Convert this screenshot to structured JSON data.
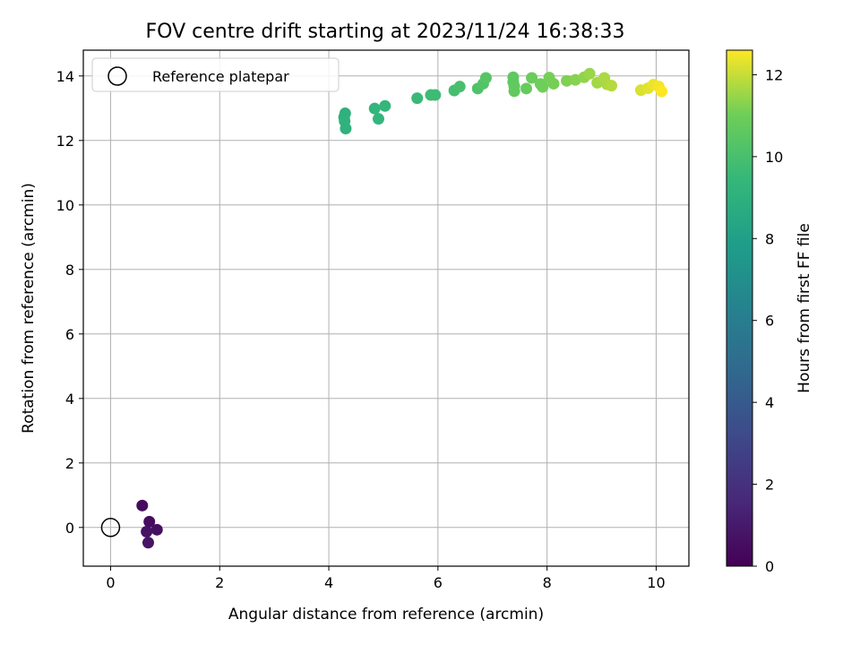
{
  "chart_data": {
    "type": "scatter",
    "title": "FOV centre drift starting at 2023/11/24 16:38:33",
    "xlabel": "Angular distance from reference (arcmin)",
    "ylabel": "Rotation from reference (arcmin)",
    "colorbar_label": "Hours from first FF file",
    "xlim": [
      -0.5,
      10.6
    ],
    "ylim": [
      -1.2,
      14.8
    ],
    "xticks": [
      0,
      2,
      4,
      6,
      8,
      10
    ],
    "yticks": [
      0,
      2,
      4,
      6,
      8,
      10,
      12,
      14
    ],
    "colorbar_range": [
      0,
      12.6
    ],
    "colorbar_ticks": [
      0,
      2,
      4,
      6,
      8,
      10,
      12
    ],
    "colormap": "viridis",
    "grid": true,
    "legend": {
      "position": "top-left",
      "entries": [
        "Reference platepar"
      ]
    },
    "reference_point": {
      "x": 0,
      "y": 0
    },
    "points": [
      {
        "x": 0.58,
        "y": 0.68,
        "t": 0.4
      },
      {
        "x": 0.71,
        "y": 0.18,
        "t": 0.5
      },
      {
        "x": 0.85,
        "y": -0.07,
        "t": 0.6
      },
      {
        "x": 0.66,
        "y": -0.13,
        "t": 0.7
      },
      {
        "x": 0.69,
        "y": -0.47,
        "t": 0.8
      },
      {
        "x": 4.28,
        "y": 12.72,
        "t": 9.0
      },
      {
        "x": 4.3,
        "y": 12.84,
        "t": 9.0
      },
      {
        "x": 4.29,
        "y": 12.6,
        "t": 9.1
      },
      {
        "x": 4.31,
        "y": 12.37,
        "t": 9.1
      },
      {
        "x": 4.84,
        "y": 12.99,
        "t": 9.3
      },
      {
        "x": 4.91,
        "y": 12.67,
        "t": 9.3
      },
      {
        "x": 5.03,
        "y": 13.07,
        "t": 9.4
      },
      {
        "x": 5.62,
        "y": 13.31,
        "t": 9.6
      },
      {
        "x": 5.87,
        "y": 13.41,
        "t": 9.7
      },
      {
        "x": 5.95,
        "y": 13.41,
        "t": 9.7
      },
      {
        "x": 6.3,
        "y": 13.55,
        "t": 9.9
      },
      {
        "x": 6.4,
        "y": 13.67,
        "t": 10.0
      },
      {
        "x": 6.73,
        "y": 13.61,
        "t": 10.2
      },
      {
        "x": 6.83,
        "y": 13.76,
        "t": 10.3
      },
      {
        "x": 6.88,
        "y": 13.94,
        "t": 10.4
      },
      {
        "x": 7.38,
        "y": 13.96,
        "t": 10.6
      },
      {
        "x": 7.38,
        "y": 13.81,
        "t": 10.6
      },
      {
        "x": 7.4,
        "y": 13.68,
        "t": 10.7
      },
      {
        "x": 7.4,
        "y": 13.53,
        "t": 10.7
      },
      {
        "x": 7.62,
        "y": 13.61,
        "t": 10.8
      },
      {
        "x": 7.72,
        "y": 13.94,
        "t": 10.9
      },
      {
        "x": 7.88,
        "y": 13.75,
        "t": 11.0
      },
      {
        "x": 7.92,
        "y": 13.66,
        "t": 11.0
      },
      {
        "x": 8.04,
        "y": 13.95,
        "t": 11.1
      },
      {
        "x": 8.12,
        "y": 13.76,
        "t": 11.1
      },
      {
        "x": 8.36,
        "y": 13.85,
        "t": 11.2
      },
      {
        "x": 8.52,
        "y": 13.88,
        "t": 11.3
      },
      {
        "x": 8.68,
        "y": 13.96,
        "t": 11.4
      },
      {
        "x": 8.78,
        "y": 14.07,
        "t": 11.5
      },
      {
        "x": 8.92,
        "y": 13.79,
        "t": 11.6
      },
      {
        "x": 9.05,
        "y": 13.94,
        "t": 11.7
      },
      {
        "x": 9.1,
        "y": 13.74,
        "t": 11.7
      },
      {
        "x": 9.18,
        "y": 13.7,
        "t": 11.8
      },
      {
        "x": 9.72,
        "y": 13.56,
        "t": 12.2
      },
      {
        "x": 9.85,
        "y": 13.62,
        "t": 12.3
      },
      {
        "x": 9.95,
        "y": 13.73,
        "t": 12.4
      },
      {
        "x": 10.05,
        "y": 13.67,
        "t": 12.5
      },
      {
        "x": 10.1,
        "y": 13.52,
        "t": 12.6
      }
    ]
  }
}
